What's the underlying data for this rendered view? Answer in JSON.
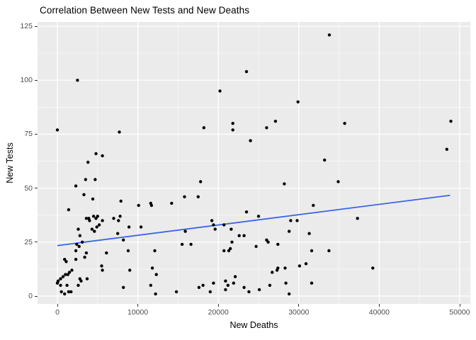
{
  "chart_data": {
    "type": "scatter",
    "title": "Correlation Between New Tests and New Deaths",
    "xlabel": "New Deaths",
    "ylabel": "New Tests",
    "x_ticks": [
      0,
      10000,
      20000,
      30000,
      40000,
      50000
    ],
    "x_tick_labels": [
      "0",
      "10000",
      "20000",
      "30000",
      "40000",
      "50000"
    ],
    "y_ticks": [
      0,
      25,
      50,
      75,
      100,
      125
    ],
    "y_tick_labels": [
      "0",
      "25",
      "50",
      "75",
      "100",
      "125"
    ],
    "xlim": [
      -2465,
      51320
    ],
    "ylim": [
      -3.6,
      127
    ],
    "grid": "major-and-minor-white-on-grey",
    "legend": "none",
    "trend_line": {
      "name": "linear-fit-line",
      "points": [
        [
          0,
          23.4
        ],
        [
          48800,
          46.7
        ]
      ]
    },
    "points": [
      [
        2500,
        100
      ],
      [
        0,
        77
      ],
      [
        7700,
        76
      ],
      [
        4800,
        66
      ],
      [
        5600,
        65
      ],
      [
        3800,
        62
      ],
      [
        23500,
        104
      ],
      [
        20200,
        95
      ],
      [
        29900,
        90
      ],
      [
        27100,
        81
      ],
      [
        18200,
        78
      ],
      [
        21800,
        80
      ],
      [
        21800,
        77
      ],
      [
        26000,
        78
      ],
      [
        24000,
        72
      ],
      [
        33200,
        63
      ],
      [
        33800,
        121
      ],
      [
        35700,
        80
      ],
      [
        48900,
        81
      ],
      [
        48400,
        68
      ],
      [
        3500,
        54
      ],
      [
        4700,
        54
      ],
      [
        2300,
        51
      ],
      [
        3300,
        47
      ],
      [
        4400,
        45
      ],
      [
        1400,
        40
      ],
      [
        7900,
        44
      ],
      [
        10100,
        42
      ],
      [
        11600,
        43
      ],
      [
        11700,
        42
      ],
      [
        14200,
        43
      ],
      [
        15800,
        46
      ],
      [
        3600,
        36
      ],
      [
        3900,
        36
      ],
      [
        4000,
        35
      ],
      [
        4500,
        37
      ],
      [
        4800,
        36
      ],
      [
        5000,
        37
      ],
      [
        5600,
        35
      ],
      [
        4900,
        32
      ],
      [
        5200,
        33
      ],
      [
        2600,
        31
      ],
      [
        4300,
        31
      ],
      [
        4600,
        30
      ],
      [
        7000,
        36
      ],
      [
        7600,
        35
      ],
      [
        7800,
        37
      ],
      [
        8900,
        32
      ],
      [
        10400,
        32
      ],
      [
        7500,
        29
      ],
      [
        8200,
        26
      ],
      [
        2800,
        28
      ],
      [
        2400,
        24
      ],
      [
        2700,
        23
      ],
      [
        3100,
        25
      ],
      [
        2300,
        21
      ],
      [
        3600,
        20
      ],
      [
        900,
        17
      ],
      [
        1100,
        16
      ],
      [
        2300,
        17
      ],
      [
        3400,
        18
      ],
      [
        6100,
        20
      ],
      [
        8800,
        21
      ],
      [
        9000,
        12
      ],
      [
        5500,
        14
      ],
      [
        5600,
        12
      ],
      [
        12100,
        21
      ],
      [
        11800,
        13
      ],
      [
        12300,
        10
      ],
      [
        15900,
        30
      ],
      [
        15500,
        24
      ],
      [
        0,
        6
      ],
      [
        100,
        7
      ],
      [
        400,
        8
      ],
      [
        700,
        9
      ],
      [
        1000,
        10
      ],
      [
        1300,
        10
      ],
      [
        1500,
        11
      ],
      [
        1800,
        12
      ],
      [
        2800,
        8
      ],
      [
        2950,
        7
      ],
      [
        3700,
        8
      ],
      [
        1200,
        5
      ],
      [
        400,
        5
      ],
      [
        2600,
        5
      ],
      [
        500,
        2
      ],
      [
        900,
        1
      ],
      [
        1400,
        2
      ],
      [
        1700,
        2
      ],
      [
        8200,
        4
      ],
      [
        11600,
        5
      ],
      [
        12200,
        1
      ],
      [
        14800,
        2
      ],
      [
        17800,
        53
      ],
      [
        17500,
        46
      ],
      [
        28200,
        52
      ],
      [
        31800,
        42
      ],
      [
        23500,
        39
      ],
      [
        25000,
        37
      ],
      [
        19200,
        35
      ],
      [
        19400,
        33
      ],
      [
        19600,
        31
      ],
      [
        20700,
        33
      ],
      [
        21600,
        31
      ],
      [
        22600,
        28
      ],
      [
        23200,
        28
      ],
      [
        21700,
        25
      ],
      [
        21500,
        22
      ],
      [
        21300,
        21
      ],
      [
        20700,
        21
      ],
      [
        16600,
        24
      ],
      [
        24700,
        23
      ],
      [
        26000,
        26
      ],
      [
        26200,
        25
      ],
      [
        27400,
        24
      ],
      [
        28800,
        30
      ],
      [
        29000,
        35
      ],
      [
        29800,
        35
      ],
      [
        31300,
        29
      ],
      [
        31600,
        21
      ],
      [
        33750,
        21
      ],
      [
        26700,
        11
      ],
      [
        27300,
        12
      ],
      [
        27400,
        13
      ],
      [
        28300,
        13
      ],
      [
        30100,
        14
      ],
      [
        30900,
        15
      ],
      [
        20900,
        7
      ],
      [
        22100,
        9
      ],
      [
        21900,
        6
      ],
      [
        17600,
        4
      ],
      [
        18100,
        5
      ],
      [
        19000,
        2
      ],
      [
        19400,
        6
      ],
      [
        20900,
        3
      ],
      [
        21200,
        5
      ],
      [
        23200,
        4
      ],
      [
        23800,
        2
      ],
      [
        25100,
        3
      ],
      [
        26400,
        5
      ],
      [
        28400,
        6
      ],
      [
        28800,
        1
      ],
      [
        31600,
        6
      ],
      [
        34900,
        53
      ],
      [
        37300,
        36
      ],
      [
        39200,
        13
      ]
    ]
  },
  "style": {
    "page_bg": "#ffffff",
    "panel_bg": "#ebebeb",
    "grid_major_color": "#ffffff",
    "grid_minor_color": "#f7f7f7",
    "point_color": "#000000",
    "trend_color": "#3a66e8",
    "tick_mark_color": "#333333",
    "tick_label_color": "#4d4d4d",
    "axis_title_color": "#000000",
    "title_color": "#000000"
  }
}
